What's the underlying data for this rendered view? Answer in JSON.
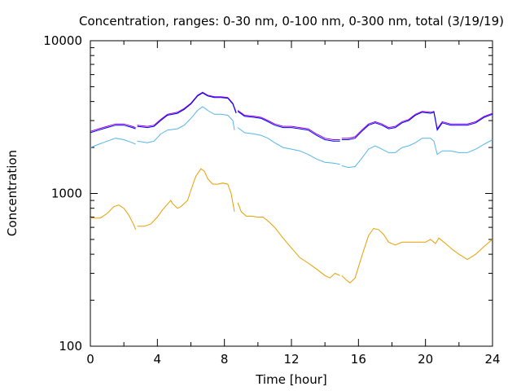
{
  "chart_data": {
    "type": "line",
    "title": "Concentration, ranges: 0-30 nm, 0-100 nm, 0-300 nm, total (3/19/19)",
    "xlabel": "Time [hour]",
    "ylabel": "Concentration",
    "xlim": [
      0,
      24
    ],
    "ylim": [
      100,
      10000
    ],
    "y_scale": "log",
    "grid": false,
    "x_ticks": [
      "0",
      "4",
      "8",
      "12",
      "16",
      "20",
      "24"
    ],
    "y_ticks": [
      "100",
      "1000",
      "10000"
    ],
    "series_colors": [
      "#e69f00",
      "#56b4e9",
      "#9400d3",
      "#0000ff"
    ],
    "series": [
      {
        "color": "#e69f00",
        "segments": [
          [
            [
              0,
              690
            ],
            [
              0.6,
              690
            ],
            [
              1,
              740
            ],
            [
              1.4,
              820
            ],
            [
              1.7,
              840
            ],
            [
              2,
              800
            ],
            [
              2.3,
              720
            ],
            [
              2.6,
              620
            ],
            [
              2.7,
              580
            ]
          ],
          [
            [
              2.8,
              610
            ],
            [
              3.2,
              610
            ],
            [
              3.6,
              630
            ],
            [
              4,
              700
            ],
            [
              4.3,
              780
            ],
            [
              4.6,
              850
            ],
            [
              4.8,
              900
            ],
            [
              4.9,
              860
            ],
            [
              5.2,
              800
            ],
            [
              5.4,
              820
            ],
            [
              5.6,
              860
            ],
            [
              5.8,
              900
            ],
            [
              6,
              1050
            ],
            [
              6.3,
              1300
            ],
            [
              6.6,
              1450
            ],
            [
              6.8,
              1400
            ],
            [
              7,
              1250
            ],
            [
              7.3,
              1150
            ],
            [
              7.6,
              1150
            ],
            [
              7.9,
              1170
            ],
            [
              8.2,
              1150
            ],
            [
              8.4,
              1000
            ],
            [
              8.6,
              760
            ]
          ],
          [
            [
              8.8,
              870
            ],
            [
              9,
              760
            ],
            [
              9.3,
              710
            ],
            [
              9.6,
              710
            ],
            [
              10,
              700
            ],
            [
              10.3,
              700
            ],
            [
              10.6,
              660
            ],
            [
              11,
              600
            ],
            [
              11.5,
              510
            ],
            [
              12,
              440
            ],
            [
              12.5,
              380
            ],
            [
              13,
              350
            ],
            [
              13.5,
              320
            ],
            [
              14,
              290
            ],
            [
              14.3,
              280
            ],
            [
              14.6,
              300
            ],
            [
              14.9,
              290
            ]
          ],
          [
            [
              15,
              290
            ],
            [
              15.3,
              270
            ],
            [
              15.5,
              260
            ],
            [
              15.8,
              280
            ],
            [
              16,
              330
            ],
            [
              16.3,
              420
            ],
            [
              16.6,
              530
            ],
            [
              16.9,
              590
            ],
            [
              17.2,
              580
            ],
            [
              17.5,
              540
            ],
            [
              17.8,
              480
            ],
            [
              18.2,
              460
            ],
            [
              18.6,
              480
            ],
            [
              19,
              480
            ],
            [
              19.5,
              480
            ],
            [
              20,
              480
            ],
            [
              20.3,
              500
            ],
            [
              20.6,
              470
            ],
            [
              20.8,
              510
            ],
            [
              21.2,
              470
            ],
            [
              21.6,
              430
            ],
            [
              22,
              400
            ],
            [
              22.5,
              370
            ],
            [
              23,
              400
            ],
            [
              23.5,
              450
            ],
            [
              24,
              500
            ]
          ]
        ]
      },
      {
        "color": "#56b4e9",
        "segments": [
          [
            [
              0,
              2000
            ],
            [
              0.5,
              2100
            ],
            [
              1,
              2200
            ],
            [
              1.5,
              2300
            ],
            [
              2,
              2250
            ],
            [
              2.5,
              2150
            ],
            [
              2.7,
              2100
            ]
          ],
          [
            [
              2.8,
              2200
            ],
            [
              3.4,
              2150
            ],
            [
              3.8,
              2200
            ],
            [
              4.2,
              2450
            ],
            [
              4.6,
              2600
            ],
            [
              5.2,
              2650
            ],
            [
              5.6,
              2800
            ],
            [
              6,
              3100
            ],
            [
              6.4,
              3500
            ],
            [
              6.7,
              3700
            ],
            [
              7,
              3500
            ],
            [
              7.4,
              3300
            ],
            [
              7.8,
              3300
            ],
            [
              8.2,
              3250
            ],
            [
              8.5,
              3000
            ],
            [
              8.6,
              2600
            ]
          ],
          [
            [
              8.8,
              2700
            ],
            [
              9.2,
              2500
            ],
            [
              9.8,
              2450
            ],
            [
              10.2,
              2400
            ],
            [
              10.6,
              2300
            ],
            [
              11,
              2150
            ],
            [
              11.5,
              2000
            ],
            [
              12,
              1950
            ],
            [
              12.5,
              1900
            ],
            [
              13,
              1800
            ],
            [
              13.5,
              1680
            ],
            [
              14,
              1600
            ],
            [
              14.5,
              1580
            ],
            [
              14.9,
              1550
            ]
          ],
          [
            [
              15,
              1520
            ],
            [
              15.4,
              1480
            ],
            [
              15.8,
              1500
            ],
            [
              16.2,
              1700
            ],
            [
              16.6,
              1950
            ],
            [
              17,
              2050
            ],
            [
              17.4,
              1950
            ],
            [
              17.8,
              1850
            ],
            [
              18.2,
              1850
            ],
            [
              18.6,
              2000
            ],
            [
              19,
              2050
            ],
            [
              19.4,
              2150
            ],
            [
              19.8,
              2300
            ],
            [
              20.3,
              2300
            ],
            [
              20.5,
              2200
            ],
            [
              20.7,
              1800
            ],
            [
              21,
              1900
            ],
            [
              21.5,
              1900
            ],
            [
              22,
              1850
            ],
            [
              22.5,
              1850
            ],
            [
              23,
              1950
            ],
            [
              23.5,
              2100
            ],
            [
              24,
              2250
            ]
          ]
        ]
      },
      {
        "color": "#9400d3",
        "segments": [
          [
            [
              0,
              2550
            ],
            [
              0.5,
              2650
            ],
            [
              1,
              2750
            ],
            [
              1.5,
              2850
            ],
            [
              2,
              2850
            ],
            [
              2.5,
              2750
            ],
            [
              2.7,
              2700
            ]
          ],
          [
            [
              2.8,
              2800
            ],
            [
              3.4,
              2750
            ],
            [
              3.8,
              2800
            ],
            [
              4.2,
              3050
            ],
            [
              4.6,
              3300
            ],
            [
              5.2,
              3400
            ],
            [
              5.6,
              3600
            ],
            [
              6,
              3900
            ],
            [
              6.4,
              4400
            ],
            [
              6.7,
              4600
            ],
            [
              7,
              4400
            ],
            [
              7.4,
              4300
            ],
            [
              7.8,
              4300
            ],
            [
              8.2,
              4250
            ],
            [
              8.5,
              3900
            ],
            [
              8.7,
              3400
            ]
          ],
          [
            [
              8.8,
              3500
            ],
            [
              9.2,
              3250
            ],
            [
              9.8,
              3200
            ],
            [
              10.2,
              3150
            ],
            [
              10.6,
              3000
            ],
            [
              11,
              2850
            ],
            [
              11.5,
              2750
            ],
            [
              12,
              2750
            ],
            [
              12.5,
              2700
            ],
            [
              13,
              2650
            ],
            [
              13.5,
              2450
            ],
            [
              14,
              2300
            ],
            [
              14.5,
              2250
            ],
            [
              14.9,
              2250
            ]
          ],
          [
            [
              15,
              2300
            ],
            [
              15.4,
              2300
            ],
            [
              15.8,
              2350
            ],
            [
              16.2,
              2600
            ],
            [
              16.6,
              2850
            ],
            [
              17,
              2950
            ],
            [
              17.4,
              2850
            ],
            [
              17.8,
              2700
            ],
            [
              18.2,
              2750
            ],
            [
              18.6,
              2950
            ],
            [
              19,
              3050
            ],
            [
              19.4,
              3300
            ],
            [
              19.8,
              3450
            ],
            [
              20.3,
              3400
            ],
            [
              20.5,
              3450
            ],
            [
              20.7,
              2650
            ],
            [
              21,
              2950
            ],
            [
              21.5,
              2850
            ],
            [
              22,
              2850
            ],
            [
              22.5,
              2850
            ],
            [
              23,
              2950
            ],
            [
              23.5,
              3200
            ],
            [
              24,
              3350
            ]
          ]
        ]
      },
      {
        "color": "#0000ff",
        "segments": [
          [
            [
              0,
              2500
            ],
            [
              0.5,
              2600
            ],
            [
              1,
              2700
            ],
            [
              1.5,
              2800
            ],
            [
              2,
              2800
            ],
            [
              2.5,
              2700
            ],
            [
              2.7,
              2650
            ]
          ],
          [
            [
              2.8,
              2750
            ],
            [
              3.4,
              2700
            ],
            [
              3.8,
              2750
            ],
            [
              4.2,
              3000
            ],
            [
              4.6,
              3250
            ],
            [
              5.2,
              3350
            ],
            [
              5.6,
              3550
            ],
            [
              6,
              3850
            ],
            [
              6.4,
              4350
            ],
            [
              6.7,
              4550
            ],
            [
              7,
              4350
            ],
            [
              7.4,
              4250
            ],
            [
              7.8,
              4250
            ],
            [
              8.2,
              4200
            ],
            [
              8.5,
              3850
            ],
            [
              8.7,
              3350
            ]
          ],
          [
            [
              8.8,
              3450
            ],
            [
              9.2,
              3200
            ],
            [
              9.8,
              3150
            ],
            [
              10.2,
              3100
            ],
            [
              10.6,
              2950
            ],
            [
              11,
              2800
            ],
            [
              11.5,
              2700
            ],
            [
              12,
              2700
            ],
            [
              12.5,
              2650
            ],
            [
              13,
              2600
            ],
            [
              13.5,
              2400
            ],
            [
              14,
              2250
            ],
            [
              14.5,
              2200
            ],
            [
              14.9,
              2200
            ]
          ],
          [
            [
              15,
              2250
            ],
            [
              15.4,
              2250
            ],
            [
              15.8,
              2300
            ],
            [
              16.2,
              2550
            ],
            [
              16.6,
              2800
            ],
            [
              17,
              2900
            ],
            [
              17.4,
              2800
            ],
            [
              17.8,
              2650
            ],
            [
              18.2,
              2700
            ],
            [
              18.6,
              2900
            ],
            [
              19,
              3000
            ],
            [
              19.4,
              3250
            ],
            [
              19.8,
              3400
            ],
            [
              20.3,
              3350
            ],
            [
              20.5,
              3400
            ],
            [
              20.7,
              2600
            ],
            [
              21,
              2900
            ],
            [
              21.5,
              2800
            ],
            [
              22,
              2800
            ],
            [
              22.5,
              2800
            ],
            [
              23,
              2900
            ],
            [
              23.5,
              3150
            ],
            [
              24,
              3300
            ]
          ]
        ]
      }
    ]
  }
}
